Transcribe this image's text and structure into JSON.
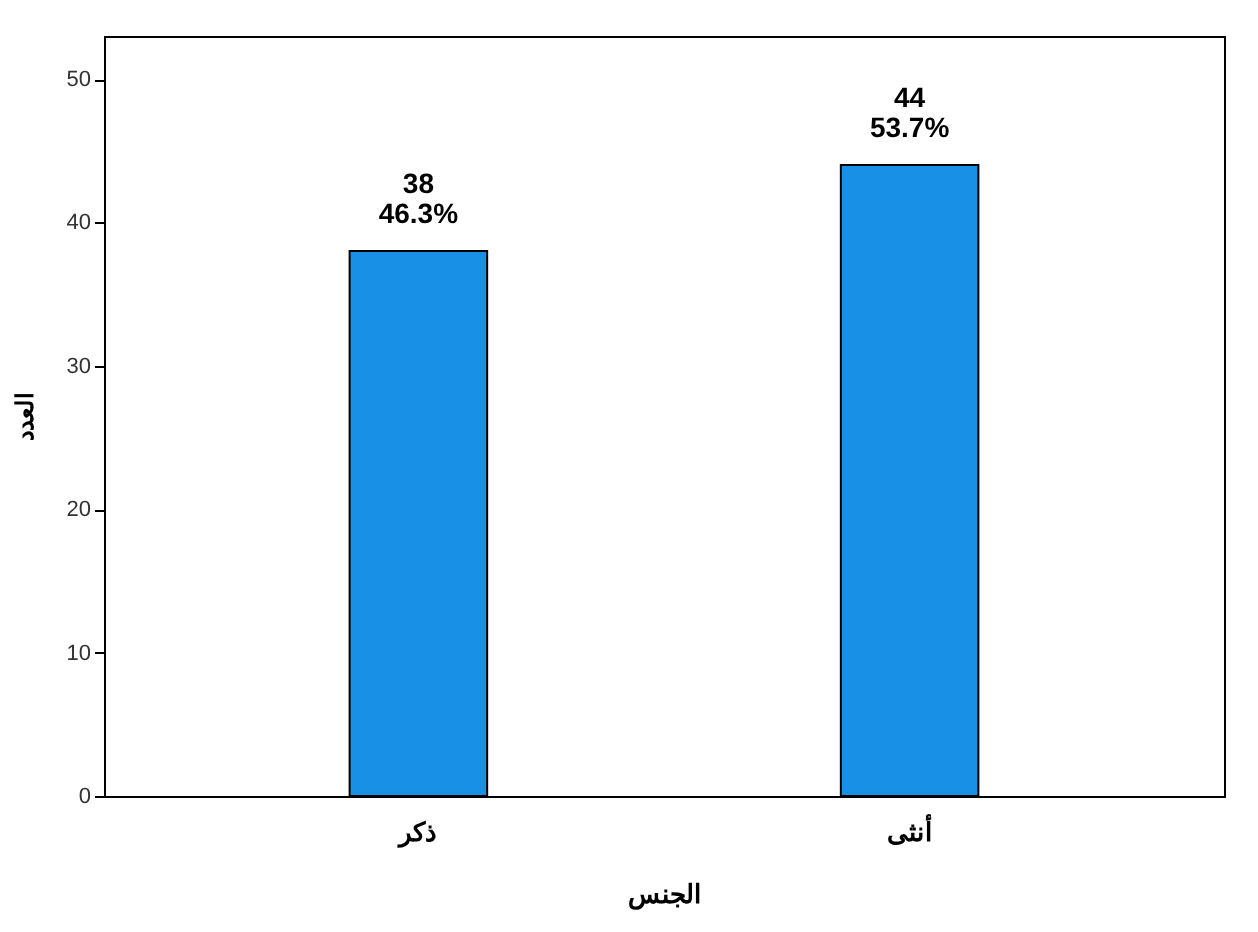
{
  "chart_data": {
    "type": "bar",
    "xlabel": "الجنس",
    "ylabel": "العدد",
    "categories": [
      "ذكر",
      "أنثى"
    ],
    "values": [
      38,
      44
    ],
    "color": "#1790e5",
    "value_labels": [
      "38\n46.3%",
      "44\n53.7%"
    ],
    "ylim": [
      0,
      53
    ],
    "yticks": [
      0,
      10,
      20,
      30,
      40,
      50
    ],
    "grid": false
  }
}
